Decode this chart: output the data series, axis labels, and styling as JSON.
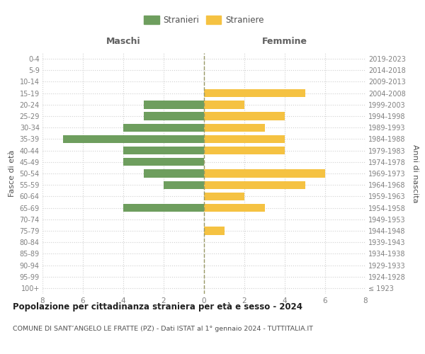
{
  "age_groups": [
    "100+",
    "95-99",
    "90-94",
    "85-89",
    "80-84",
    "75-79",
    "70-74",
    "65-69",
    "60-64",
    "55-59",
    "50-54",
    "45-49",
    "40-44",
    "35-39",
    "30-34",
    "25-29",
    "20-24",
    "15-19",
    "10-14",
    "5-9",
    "0-4"
  ],
  "birth_years": [
    "≤ 1923",
    "1924-1928",
    "1929-1933",
    "1934-1938",
    "1939-1943",
    "1944-1948",
    "1949-1953",
    "1954-1958",
    "1959-1963",
    "1964-1968",
    "1969-1973",
    "1974-1978",
    "1979-1983",
    "1984-1988",
    "1989-1993",
    "1994-1998",
    "1999-2003",
    "2004-2008",
    "2009-2013",
    "2014-2018",
    "2019-2023"
  ],
  "males": [
    0,
    0,
    0,
    0,
    0,
    0,
    0,
    4,
    0,
    2,
    3,
    4,
    4,
    7,
    4,
    3,
    3,
    0,
    0,
    0,
    0
  ],
  "females": [
    0,
    0,
    0,
    0,
    0,
    1,
    0,
    3,
    2,
    5,
    6,
    0,
    4,
    4,
    3,
    4,
    2,
    5,
    0,
    0,
    0
  ],
  "male_color": "#6e9e5e",
  "female_color": "#f5c242",
  "title": "Popolazione per cittadinanza straniera per età e sesso - 2024",
  "subtitle": "COMUNE DI SANT’ANGELO LE FRATTE (PZ) - Dati ISTAT al 1° gennaio 2024 - TUTTITALIA.IT",
  "ylabel_left": "Fasce di età",
  "ylabel_right": "Anni di nascita",
  "xlabel_left": "Maschi",
  "xlabel_right": "Femmine",
  "legend_male": "Stranieri",
  "legend_female": "Straniere",
  "xlim": 8,
  "background_color": "#ffffff",
  "grid_color": "#d0d0d0",
  "center_line_color": "#999966",
  "label_color": "#808080"
}
